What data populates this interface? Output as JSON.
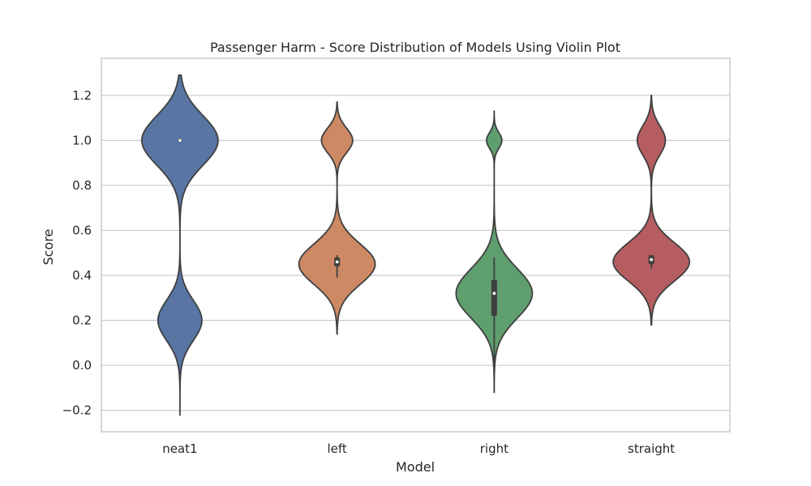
{
  "chart_data": {
    "type": "violin",
    "title": "Passenger Harm - Score Distribution of Models Using Violin Plot",
    "xlabel": "Model",
    "ylabel": "Score",
    "ylim": [
      -0.295,
      1.365
    ],
    "yticks": [
      -0.2,
      0.0,
      0.2,
      0.4,
      0.6,
      0.8,
      1.0,
      1.2
    ],
    "ytick_labels": [
      "−0.2",
      "0.0",
      "0.2",
      "0.4",
      "0.6",
      "0.8",
      "1.0",
      "1.2"
    ],
    "grid": true,
    "categories": [
      "neat1",
      "left",
      "right",
      "straight"
    ],
    "series": [
      {
        "category": "neat1",
        "color": "#5875a4",
        "range": [
          -0.22,
          1.29
        ],
        "components": [
          {
            "mean": 1.0,
            "sd": 0.11,
            "weight": 0.68
          },
          {
            "mean": 0.2,
            "sd": 0.09,
            "weight": 0.32
          }
        ],
        "median": 1.0,
        "q1": 1.0,
        "q3": 1.0,
        "whisker": [
          1.0,
          1.0
        ]
      },
      {
        "category": "left",
        "color": "#cc8963",
        "range": [
          0.14,
          1.17
        ],
        "components": [
          {
            "mean": 0.45,
            "sd": 0.09,
            "weight": 0.8
          },
          {
            "mean": 1.0,
            "sd": 0.055,
            "weight": 0.2
          }
        ],
        "median": 0.46,
        "q1": 0.44,
        "q3": 0.48,
        "whisker": [
          0.39,
          0.49
        ]
      },
      {
        "category": "right",
        "color": "#5f9e6e",
        "range": [
          -0.12,
          1.13
        ],
        "components": [
          {
            "mean": 0.32,
            "sd": 0.11,
            "weight": 0.94
          },
          {
            "mean": 1.0,
            "sd": 0.035,
            "weight": 0.06
          }
        ],
        "median": 0.32,
        "q1": 0.22,
        "q3": 0.38,
        "whisker": [
          0.01,
          0.48
        ]
      },
      {
        "category": "straight",
        "color": "#b55d60",
        "range": [
          0.18,
          1.2
        ],
        "components": [
          {
            "mean": 0.46,
            "sd": 0.085,
            "weight": 0.78
          },
          {
            "mean": 1.0,
            "sd": 0.065,
            "weight": 0.22
          }
        ],
        "median": 0.47,
        "q1": 0.45,
        "q3": 0.49,
        "whisker": [
          0.43,
          0.49
        ]
      }
    ]
  }
}
